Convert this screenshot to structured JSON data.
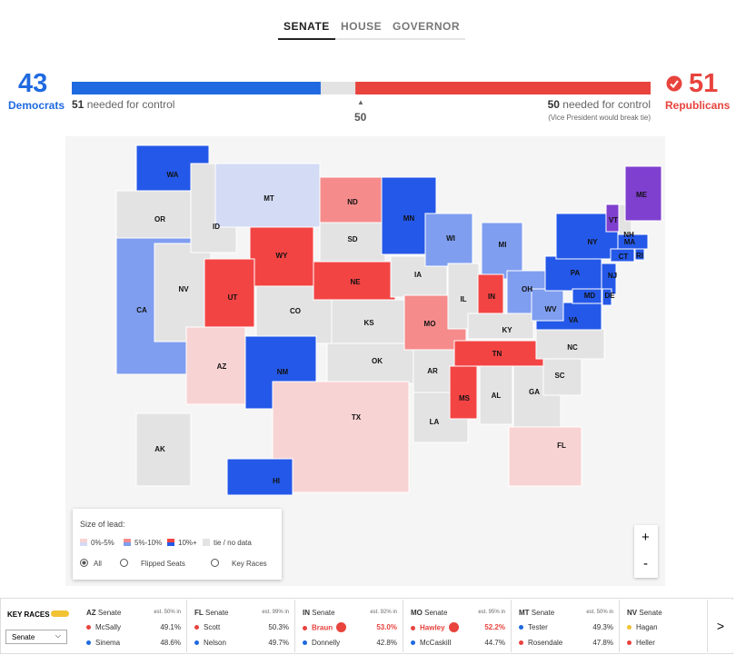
{
  "tabs": {
    "items": [
      "SENATE",
      "HOUSE",
      "GOVERNOR"
    ],
    "active": 0
  },
  "balance": {
    "democrats": {
      "seats": 43,
      "label": "Democrats",
      "needed": 51,
      "needed_text": "needed for control"
    },
    "republicans": {
      "seats": 51,
      "label": "Republicans",
      "needed": 50,
      "needed_text": "needed for control",
      "note": "(Vice President would break tie)"
    },
    "midpoint": 50
  },
  "colors": {
    "d10": "#2458e8",
    "d5": "#7f9ef0",
    "d0": "#d3dbf5",
    "r10": "#f34444",
    "r5": "#f58b8b",
    "r0": "#f8d3d3",
    "ind": "#7f3fcf",
    "none": "#e3e3e3",
    "dem": "#1f6ae0",
    "rep": "#e8433d",
    "other": "#f1c232"
  },
  "states": [
    {
      "abbr": "WA",
      "lead": "d10"
    },
    {
      "abbr": "OR",
      "lead": "none"
    },
    {
      "abbr": "CA",
      "lead": "d5"
    },
    {
      "abbr": "NV",
      "lead": "none"
    },
    {
      "abbr": "ID",
      "lead": "none"
    },
    {
      "abbr": "MT",
      "lead": "d0"
    },
    {
      "abbr": "WY",
      "lead": "r10"
    },
    {
      "abbr": "UT",
      "lead": "r10"
    },
    {
      "abbr": "CO",
      "lead": "none"
    },
    {
      "abbr": "AZ",
      "lead": "r0"
    },
    {
      "abbr": "NM",
      "lead": "d10"
    },
    {
      "abbr": "ND",
      "lead": "r5"
    },
    {
      "abbr": "SD",
      "lead": "none"
    },
    {
      "abbr": "NE",
      "lead": "r10"
    },
    {
      "abbr": "KS",
      "lead": "none"
    },
    {
      "abbr": "OK",
      "lead": "none"
    },
    {
      "abbr": "TX",
      "lead": "r0"
    },
    {
      "abbr": "MN",
      "lead": "d10"
    },
    {
      "abbr": "IA",
      "lead": "none"
    },
    {
      "abbr": "MO",
      "lead": "r5"
    },
    {
      "abbr": "AR",
      "lead": "none"
    },
    {
      "abbr": "LA",
      "lead": "none"
    },
    {
      "abbr": "WI",
      "lead": "d5"
    },
    {
      "abbr": "IL",
      "lead": "none"
    },
    {
      "abbr": "MI",
      "lead": "d5"
    },
    {
      "abbr": "IN",
      "lead": "r10"
    },
    {
      "abbr": "OH",
      "lead": "d5"
    },
    {
      "abbr": "KY",
      "lead": "none"
    },
    {
      "abbr": "TN",
      "lead": "r10"
    },
    {
      "abbr": "MS",
      "lead": "r10"
    },
    {
      "abbr": "AL",
      "lead": "none"
    },
    {
      "abbr": "GA",
      "lead": "none"
    },
    {
      "abbr": "FL",
      "lead": "r0"
    },
    {
      "abbr": "SC",
      "lead": "none"
    },
    {
      "abbr": "NC",
      "lead": "none"
    },
    {
      "abbr": "VA",
      "lead": "d10"
    },
    {
      "abbr": "WV",
      "lead": "d5"
    },
    {
      "abbr": "PA",
      "lead": "d10"
    },
    {
      "abbr": "NY",
      "lead": "d10"
    },
    {
      "abbr": "VT",
      "lead": "ind"
    },
    {
      "abbr": "NH",
      "lead": "none"
    },
    {
      "abbr": "ME",
      "lead": "ind"
    },
    {
      "abbr": "MA",
      "lead": "d10"
    },
    {
      "abbr": "RI",
      "lead": "d10"
    },
    {
      "abbr": "CT",
      "lead": "d10"
    },
    {
      "abbr": "NJ",
      "lead": "d10"
    },
    {
      "abbr": "DE",
      "lead": "d10"
    },
    {
      "abbr": "MD",
      "lead": "d10"
    },
    {
      "abbr": "AK",
      "lead": "none"
    },
    {
      "abbr": "HI",
      "lead": "d10"
    }
  ],
  "legend": {
    "title": "Size of lead:",
    "items": [
      {
        "label": "0%-5%",
        "swatch": [
          "r0",
          "d0"
        ]
      },
      {
        "label": "5%-10%",
        "swatch": [
          "r5",
          "d5"
        ]
      },
      {
        "label": "10%+",
        "swatch": [
          "r10",
          "d10"
        ]
      },
      {
        "label": "tie / no data",
        "swatch": [
          "none",
          "none"
        ]
      }
    ]
  },
  "filters": {
    "items": [
      "All",
      "Flipped Seats",
      "Key Races"
    ],
    "active": 0
  },
  "zoom": {
    "in": "+",
    "out": "-"
  },
  "key_races": {
    "title": "KEY RACES",
    "select": "Senate",
    "races": [
      {
        "state": "AZ",
        "office": "Senate",
        "reporting": "est. 50% in",
        "candidates": [
          {
            "name": "McSally",
            "pct": "49.1%",
            "party": "rep"
          },
          {
            "name": "Sinema",
            "pct": "48.6%",
            "party": "dem"
          }
        ]
      },
      {
        "state": "FL",
        "office": "Senate",
        "reporting": "est. 99% in",
        "candidates": [
          {
            "name": "Scott",
            "pct": "50.3%",
            "party": "rep"
          },
          {
            "name": "Nelson",
            "pct": "49.7%",
            "party": "dem"
          }
        ]
      },
      {
        "state": "IN",
        "office": "Senate",
        "reporting": "est. 92% in",
        "candidates": [
          {
            "name": "Braun",
            "pct": "53.0%",
            "party": "rep",
            "winner": true
          },
          {
            "name": "Donnelly",
            "pct": "42.8%",
            "party": "dem"
          }
        ]
      },
      {
        "state": "MO",
        "office": "Senate",
        "reporting": "est. 95% in",
        "candidates": [
          {
            "name": "Hawley",
            "pct": "52.2%",
            "party": "rep",
            "winner": true
          },
          {
            "name": "McCaskill",
            "pct": "44.7%",
            "party": "dem"
          }
        ]
      },
      {
        "state": "MT",
        "office": "Senate",
        "reporting": "est. 50% in",
        "candidates": [
          {
            "name": "Tester",
            "pct": "49.3%",
            "party": "dem"
          },
          {
            "name": "Rosendale",
            "pct": "47.8%",
            "party": "rep"
          }
        ]
      },
      {
        "state": "NV",
        "office": "Senate",
        "candidates": [
          {
            "name": "Hagan",
            "party": "other"
          },
          {
            "name": "Heller",
            "party": "rep"
          }
        ]
      }
    ]
  },
  "next": ">"
}
